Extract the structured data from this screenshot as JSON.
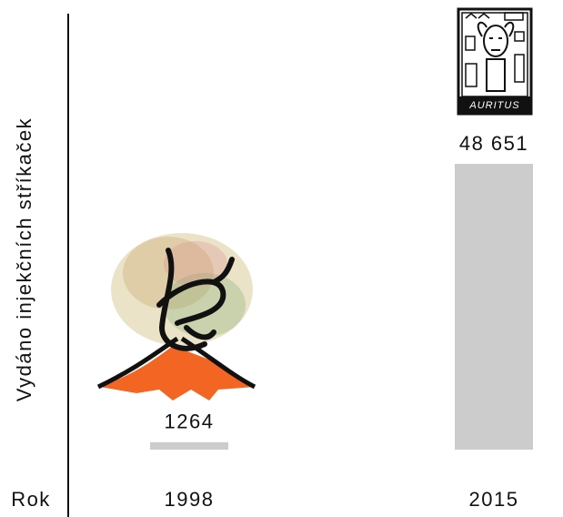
{
  "chart_data": {
    "type": "bar",
    "y_label": "Vydáno injekčních stříkaček",
    "x_label": "Rok",
    "categories": [
      "1998",
      "2015"
    ],
    "values": [
      1264,
      48651
    ],
    "value_labels": [
      "1264",
      "48 651"
    ],
    "color": "#cccccc",
    "annotations": [
      "AURITUS"
    ]
  }
}
